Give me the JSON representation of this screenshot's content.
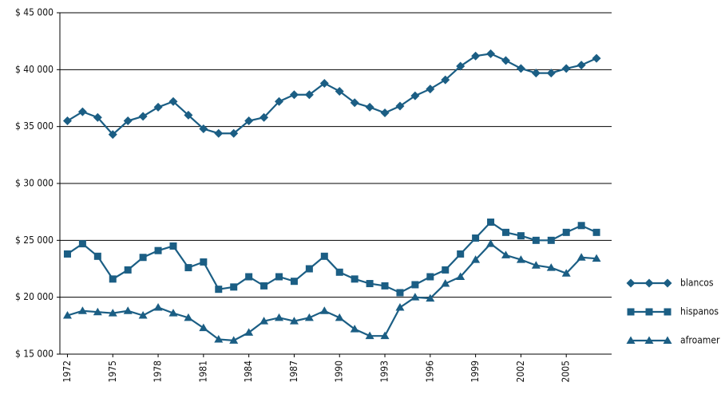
{
  "chart_data": {
    "type": "line",
    "x": [
      1972,
      1973,
      1974,
      1975,
      1976,
      1977,
      1978,
      1979,
      1980,
      1981,
      1982,
      1983,
      1984,
      1985,
      1986,
      1987,
      1988,
      1989,
      1990,
      1991,
      1992,
      1993,
      1994,
      1995,
      1996,
      1997,
      1998,
      1999,
      2000,
      2001,
      2002,
      2003,
      2004,
      2005,
      2006,
      2007
    ],
    "xlim": [
      1971.5,
      2008
    ],
    "xticks": [
      1972,
      1975,
      1978,
      1981,
      1984,
      1987,
      1990,
      1993,
      1996,
      1999,
      2002,
      2005
    ],
    "ylim": [
      15000,
      45000
    ],
    "yticks": [
      {
        "value": 15000,
        "label": "$ 15 000"
      },
      {
        "value": 20000,
        "label": "$ 20 000"
      },
      {
        "value": 25000,
        "label": "$ 25 000"
      },
      {
        "value": 30000,
        "label": "$ 30 000"
      },
      {
        "value": 35000,
        "label": "$ 35 000"
      },
      {
        "value": 40000,
        "label": "$ 40 000"
      },
      {
        "value": 45000,
        "label": "$ 45 000"
      }
    ],
    "grid": true,
    "legend": "right",
    "series": [
      {
        "name": "blancos",
        "color": "#1b5e84",
        "marker": "diamond",
        "values": [
          35500,
          36300,
          35800,
          34300,
          35500,
          35900,
          36700,
          37200,
          36000,
          34800,
          34400,
          34400,
          35500,
          35800,
          37200,
          37800,
          37800,
          38800,
          38100,
          37100,
          36700,
          36200,
          36800,
          37700,
          38300,
          39100,
          40300,
          41200,
          41400,
          40800,
          40100,
          39700,
          39700,
          40100,
          40400,
          41000
        ]
      },
      {
        "name": "hispanos",
        "color": "#1b5e84",
        "marker": "square",
        "values": [
          23800,
          24700,
          23600,
          21600,
          22400,
          23500,
          24100,
          24500,
          22600,
          23100,
          20700,
          20900,
          21800,
          21000,
          21800,
          21400,
          22500,
          23600,
          22200,
          21600,
          21200,
          21000,
          20400,
          21100,
          21800,
          22400,
          23800,
          25200,
          26600,
          25700,
          25400,
          25000,
          25000,
          25700,
          26300,
          25700
        ]
      },
      {
        "name": "afroamer",
        "color": "#1b5e84",
        "marker": "triangle",
        "values": [
          18400,
          18800,
          18700,
          18600,
          18800,
          18400,
          19100,
          18600,
          18200,
          17300,
          16300,
          16200,
          16900,
          17900,
          18200,
          17900,
          18200,
          18800,
          18200,
          17200,
          16600,
          16600,
          19100,
          20000,
          19900,
          21200,
          21800,
          23300,
          24700,
          23700,
          23300,
          22800,
          22600,
          22100,
          23500,
          23400
        ]
      }
    ]
  }
}
